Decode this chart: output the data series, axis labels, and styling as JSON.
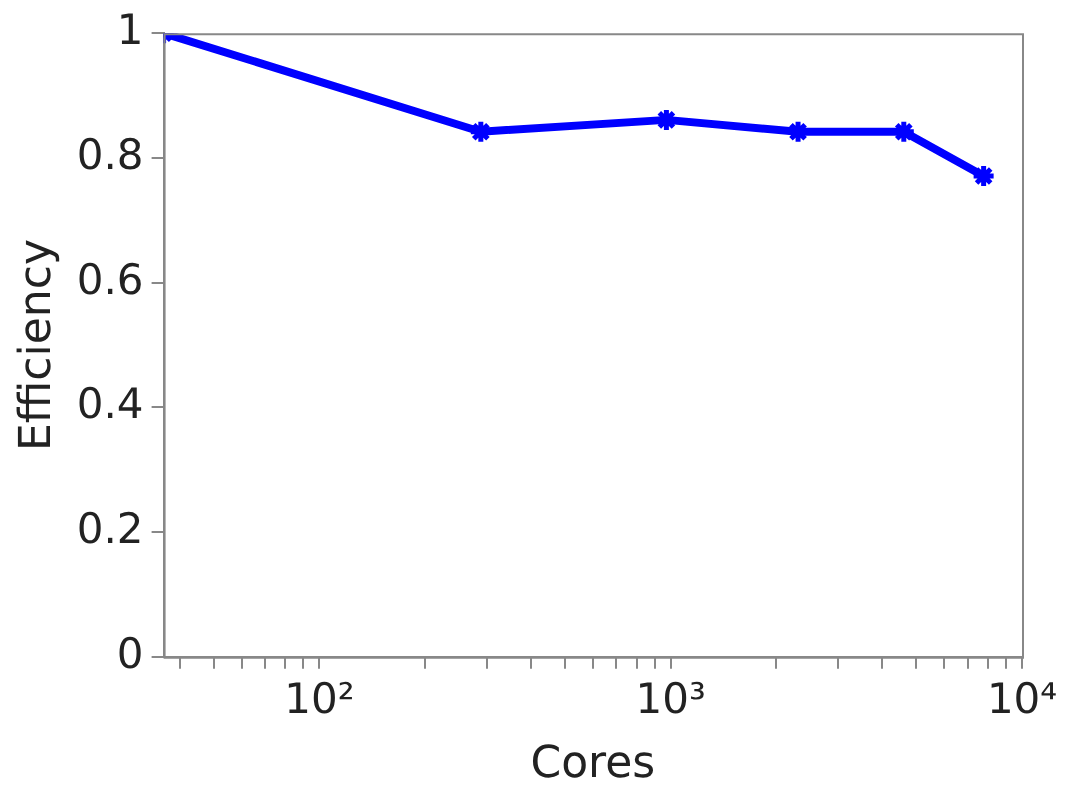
{
  "chart_data": {
    "type": "line",
    "xlabel": "Cores",
    "ylabel": "Efficiency",
    "log": "x",
    "grid": false,
    "legend": false,
    "marker": "cross",
    "line_style": "solid",
    "x": [
      36,
      288,
      972,
      2304,
      4608,
      7776
    ],
    "series": [
      {
        "color": "#0000ff",
        "values": [
          1.0,
          0.842,
          0.861,
          0.842,
          0.842,
          0.771
        ]
      }
    ],
    "xlim": [
      36,
      10000
    ],
    "xticks": [
      {
        "value": 40,
        "label": null
      },
      {
        "value": 50,
        "label": null
      },
      {
        "value": 60,
        "label": null
      },
      {
        "value": 70,
        "label": null
      },
      {
        "value": 80,
        "label": null
      },
      {
        "value": 90,
        "label": null
      },
      {
        "value": 100,
        "label": "10²"
      },
      {
        "value": 200,
        "label": null
      },
      {
        "value": 300,
        "label": null
      },
      {
        "value": 400,
        "label": null
      },
      {
        "value": 500,
        "label": null
      },
      {
        "value": 600,
        "label": null
      },
      {
        "value": 700,
        "label": null
      },
      {
        "value": 800,
        "label": null
      },
      {
        "value": 900,
        "label": null
      },
      {
        "value": 1000,
        "label": "10³"
      },
      {
        "value": 2000,
        "label": null
      },
      {
        "value": 3000,
        "label": null
      },
      {
        "value": 4000,
        "label": null
      },
      {
        "value": 5000,
        "label": null
      },
      {
        "value": 6000,
        "label": null
      },
      {
        "value": 7000,
        "label": null
      },
      {
        "value": 8000,
        "label": null
      },
      {
        "value": 9000,
        "label": null
      },
      {
        "value": 10000,
        "label": "10⁴"
      }
    ],
    "ylim": [
      0,
      1
    ],
    "yticks": [
      0,
      0.2,
      0.4,
      0.6,
      0.8,
      1
    ]
  }
}
